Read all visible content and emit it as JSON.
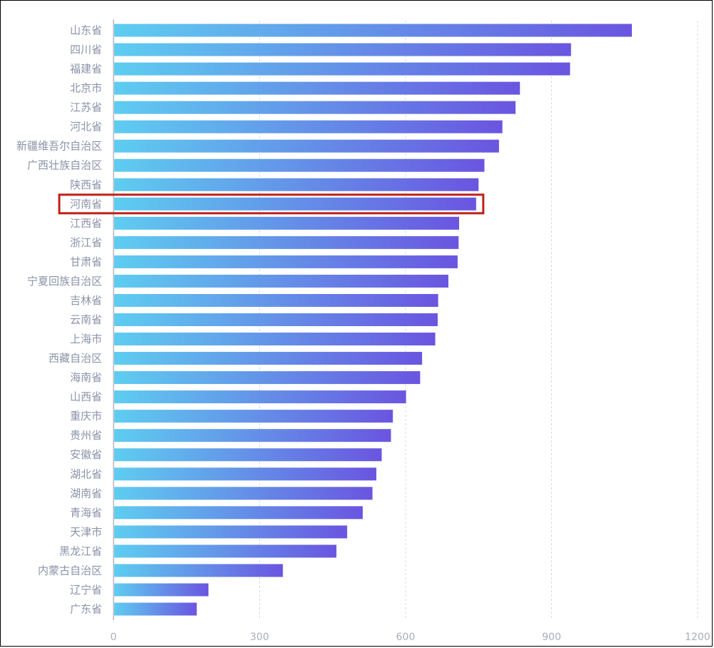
{
  "chart_data": {
    "type": "bar",
    "orientation": "horizontal",
    "categories": [
      "山东省",
      "四川省",
      "福建省",
      "北京市",
      "江苏省",
      "河北省",
      "新疆维吾尔自治区",
      "广西壮族自治区",
      "陕西省",
      "河南省",
      "江西省",
      "浙江省",
      "甘肃省",
      "宁夏回族自治区",
      "吉林省",
      "云南省",
      "上海市",
      "西藏自治区",
      "海南省",
      "山西省",
      "重庆市",
      "贵州省",
      "安徽省",
      "湖北省",
      "湖南省",
      "青海省",
      "天津市",
      "黑龙江省",
      "内蒙古自治区",
      "辽宁省",
      "广东省"
    ],
    "values": [
      1065,
      940,
      938,
      835,
      826,
      799,
      792,
      762,
      750,
      745,
      710,
      709,
      707,
      688,
      667,
      666,
      661,
      634,
      630,
      601,
      574,
      570,
      551,
      540,
      532,
      512,
      480,
      458,
      348,
      195,
      171
    ],
    "xlim": [
      0,
      1200
    ],
    "xticks": [
      "0",
      "300",
      "600",
      "900",
      "1200"
    ],
    "highlight": "河南省",
    "colors": {
      "bar_start": "#5ecdf0",
      "bar_end": "#6a55e0",
      "highlight_border": "#c0201a",
      "grid": "#d5d8e0",
      "axis": "#8d93a5"
    }
  }
}
